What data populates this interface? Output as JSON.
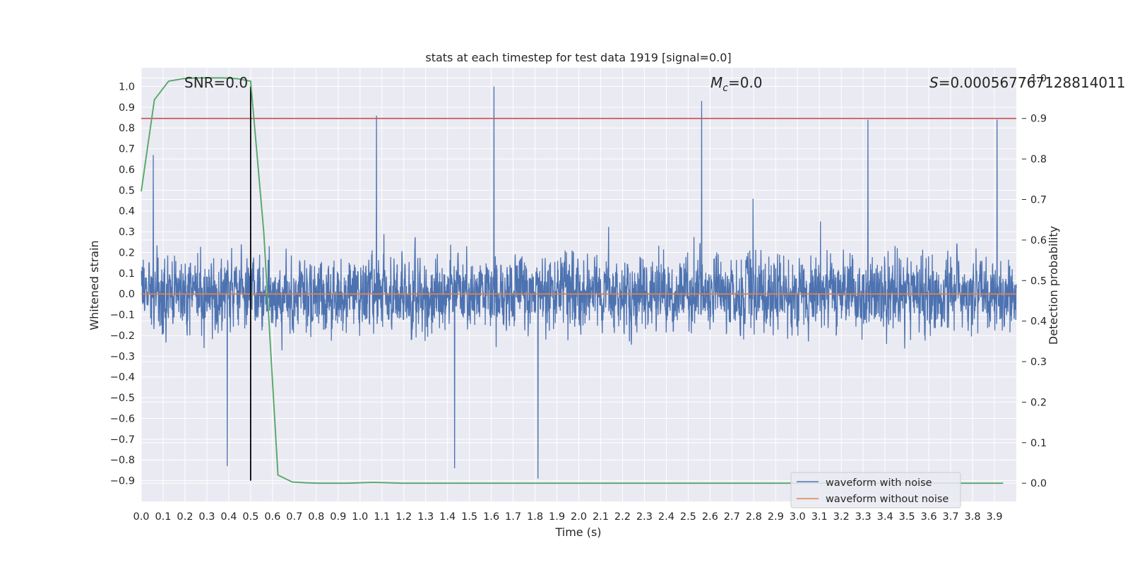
{
  "chart_data": {
    "type": "line",
    "title": "stats at each timestep for test data 1919 [signal=0.0]",
    "xlabel": "Time (s)",
    "ylabel": "Whitened strain",
    "y2label": "Detection probability",
    "xlim": [
      0.0,
      4.0
    ],
    "ylim": [
      -1.0,
      1.09
    ],
    "y2lim": [
      -0.045,
      1.025
    ],
    "xticks": [
      0.0,
      0.1,
      0.2,
      0.3,
      0.4,
      0.5,
      0.6,
      0.7,
      0.8,
      0.9,
      1.0,
      1.1,
      1.2,
      1.3,
      1.4,
      1.5,
      1.6,
      1.7,
      1.8,
      1.9,
      2.0,
      2.1,
      2.2,
      2.3,
      2.4,
      2.5,
      2.6,
      2.7,
      2.8,
      2.9,
      3.0,
      3.1,
      3.2,
      3.3,
      3.4,
      3.5,
      3.6,
      3.7,
      3.8,
      3.9
    ],
    "yticks": [
      1.0,
      0.9,
      0.8,
      0.7,
      0.6,
      0.5,
      0.4,
      0.3,
      0.2,
      0.1,
      0.0,
      -0.1,
      -0.2,
      -0.3,
      -0.4,
      -0.5,
      -0.6,
      -0.7,
      -0.8,
      -0.9
    ],
    "y2ticks": [
      1.0,
      0.9,
      0.8,
      0.7,
      0.6,
      0.5,
      0.4,
      0.3,
      0.2,
      0.1,
      0.0
    ],
    "grid": true,
    "legend_placement": "bottom-right",
    "annotations": {
      "snr": "SNR=0.0",
      "mc": "$M_c$=0.0",
      "mc_base": "M",
      "mc_sub": "c",
      "mc_rest": "=0.0",
      "s_stat": "$S$=0.000567767128814011",
      "s_base": "S",
      "s_rest": "=0.000567767128814011"
    },
    "colors": {
      "noisy": "#4c72b0",
      "clean": "#dd8452",
      "prob": "#55a868",
      "threshold": "#c44e52",
      "marker": "#000000",
      "background": "#eaeaf2",
      "grid": "#ffffff"
    },
    "threshold_y2": 0.9,
    "vertical_marker_x": 0.5,
    "series": [
      {
        "name": "waveform with noise",
        "axis": "left",
        "style": "line",
        "description_note": "dense noise, approx uniform sampling",
        "sample_count": 4000,
        "envelope_max": 1.0,
        "envelope_min": -0.89,
        "peaks": [
          [
            1.075,
            0.86
          ],
          [
            1.612,
            1.0
          ],
          [
            2.562,
            0.93
          ],
          [
            3.322,
            0.84
          ],
          [
            3.912,
            0.84
          ],
          [
            0.055,
            0.67
          ],
          [
            1.813,
            -0.89
          ],
          [
            0.393,
            -0.83
          ],
          [
            1.432,
            -0.84
          ]
        ],
        "seed": 1919
      },
      {
        "name": "waveform without noise",
        "axis": "left",
        "style": "line",
        "x": [
          0.0,
          4.0
        ],
        "y": [
          0.0,
          0.0
        ]
      },
      {
        "name": "detection probability",
        "axis": "right",
        "style": "line",
        "x": [
          0.0,
          0.06,
          0.125,
          0.19,
          0.25,
          0.31,
          0.375,
          0.44,
          0.5,
          0.56,
          0.625,
          0.69,
          0.75,
          0.81,
          0.875,
          0.94,
          1.0,
          1.06,
          1.125,
          1.19,
          1.25,
          1.5,
          2.0,
          2.5,
          3.0,
          3.5,
          3.94
        ],
        "y": [
          0.72,
          0.946,
          0.992,
          0.998,
          1.0,
          1.0,
          1.0,
          0.998,
          0.992,
          0.62,
          0.02,
          0.003,
          0.001,
          0.0,
          0.0,
          0.0,
          0.001,
          0.002,
          0.001,
          0.0,
          0.0,
          0.0,
          0.0,
          0.0,
          0.0,
          0.0,
          0.0
        ]
      }
    ]
  },
  "legend": {
    "items": [
      {
        "label": "waveform with noise",
        "color": "#4c72b0"
      },
      {
        "label": "waveform without noise",
        "color": "#dd8452"
      }
    ]
  }
}
